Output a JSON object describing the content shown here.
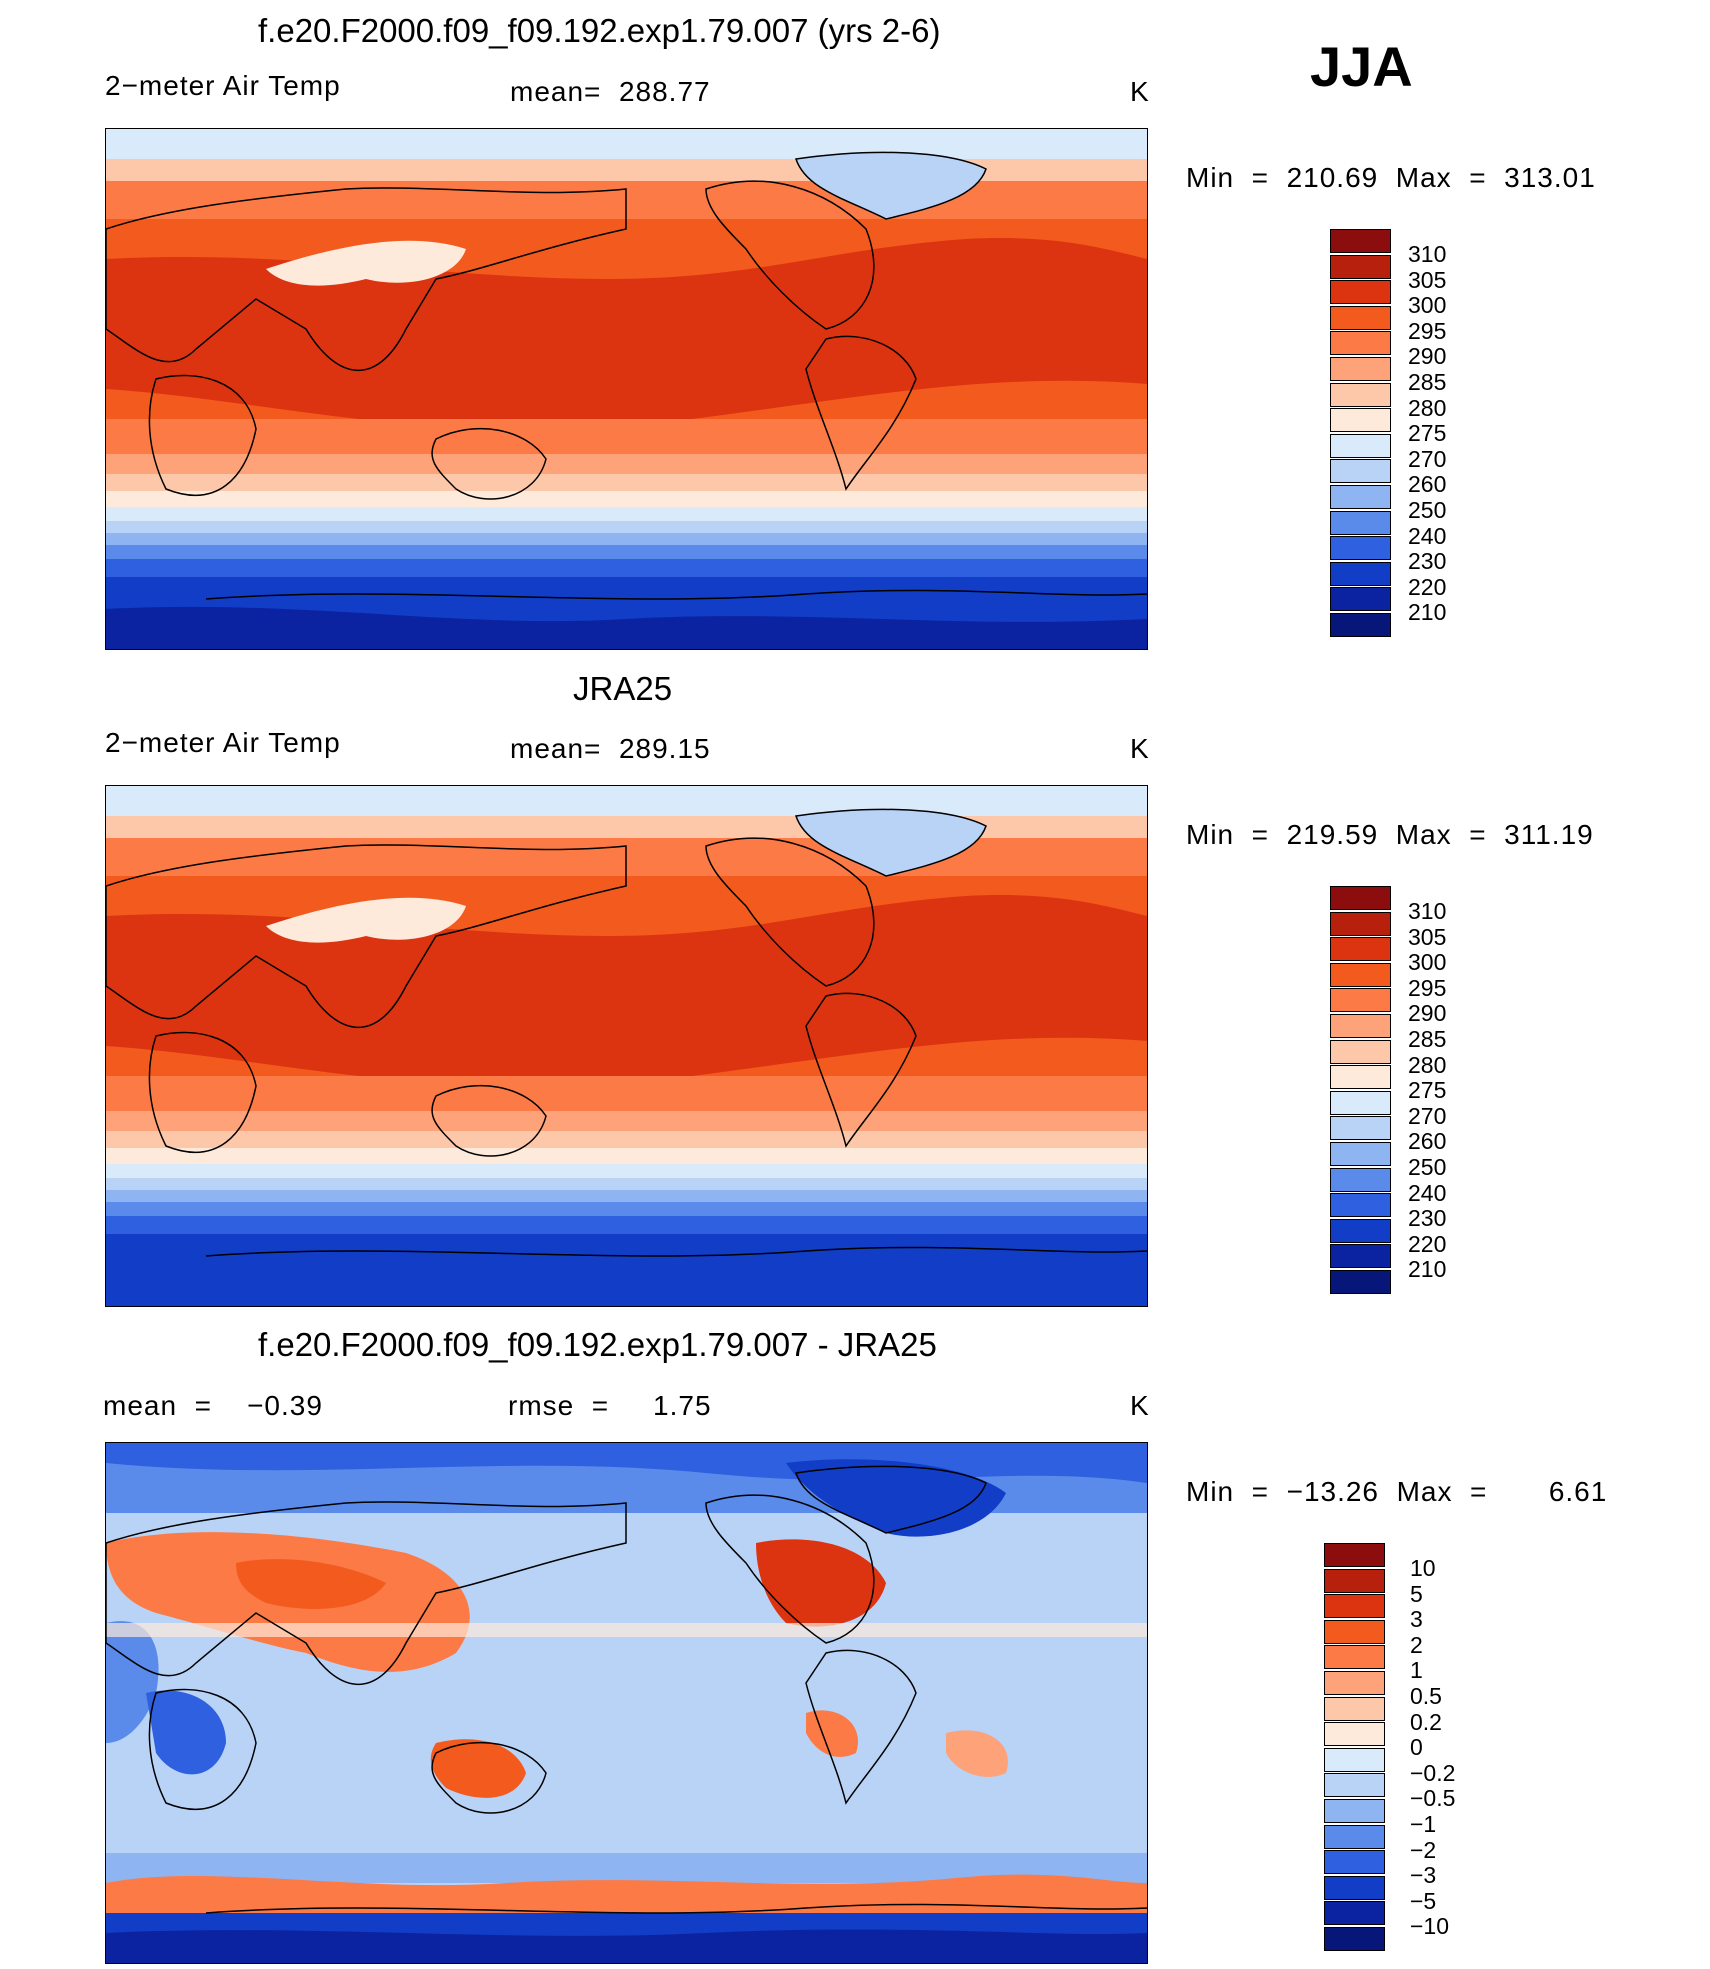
{
  "season": "JJA",
  "panels": [
    {
      "id": "model",
      "title": "f.e20.F2000.f09_f09.192.exp1.79.007 (yrs 2-6)",
      "left_label": "2−meter Air Temp",
      "center_label": "mean=  288.77",
      "unit": "K",
      "minmax": "Min  =  210.69  Max  =  313.01",
      "colorbar": {
        "labels": [
          "310",
          "305",
          "300",
          "295",
          "290",
          "285",
          "280",
          "275",
          "270",
          "260",
          "250",
          "240",
          "230",
          "220",
          "210"
        ],
        "colors": [
          "#8b0d0d",
          "#b8200e",
          "#dc3410",
          "#f35a1e",
          "#fb7a45",
          "#fda279",
          "#fdc8aa",
          "#feeadb",
          "#d9eafb",
          "#b9d3f6",
          "#8fb4f2",
          "#5a8bea",
          "#2f60df",
          "#123dc6",
          "#0b23a0",
          "#061679"
        ]
      }
    },
    {
      "id": "obs",
      "title": "JRA25",
      "left_label": "2−meter Air Temp",
      "center_label": "mean=  289.15",
      "unit": "K",
      "minmax": "Min  =  219.59  Max  =  311.19",
      "colorbar": {
        "labels": [
          "310",
          "305",
          "300",
          "295",
          "290",
          "285",
          "280",
          "275",
          "270",
          "260",
          "250",
          "240",
          "230",
          "220",
          "210"
        ],
        "colors": [
          "#8b0d0d",
          "#b8200e",
          "#dc3410",
          "#f35a1e",
          "#fb7a45",
          "#fda279",
          "#fdc8aa",
          "#feeadb",
          "#d9eafb",
          "#b9d3f6",
          "#8fb4f2",
          "#5a8bea",
          "#2f60df",
          "#123dc6",
          "#0b23a0",
          "#061679"
        ]
      }
    },
    {
      "id": "diff",
      "title": "f.e20.F2000.f09_f09.192.exp1.79.007 - JRA25",
      "left_label": "mean  =    −0.39",
      "center_label": "rmse  =     1.75",
      "unit": "K",
      "minmax": "Min  =  −13.26  Max  =       6.61",
      "colorbar": {
        "labels": [
          "10",
          "5",
          "3",
          "2",
          "1",
          "0.5",
          "0.2",
          "0",
          "−0.2",
          "−0.5",
          "−1",
          "−2",
          "−3",
          "−5",
          "−10"
        ],
        "colors": [
          "#8b0d0d",
          "#b8200e",
          "#dc3410",
          "#f35a1e",
          "#fb7a45",
          "#fda279",
          "#fdc8aa",
          "#feeadb",
          "#d9eafb",
          "#b9d3f6",
          "#8fb4f2",
          "#5a8bea",
          "#2f60df",
          "#123dc6",
          "#0b23a0",
          "#061679"
        ]
      }
    }
  ]
}
